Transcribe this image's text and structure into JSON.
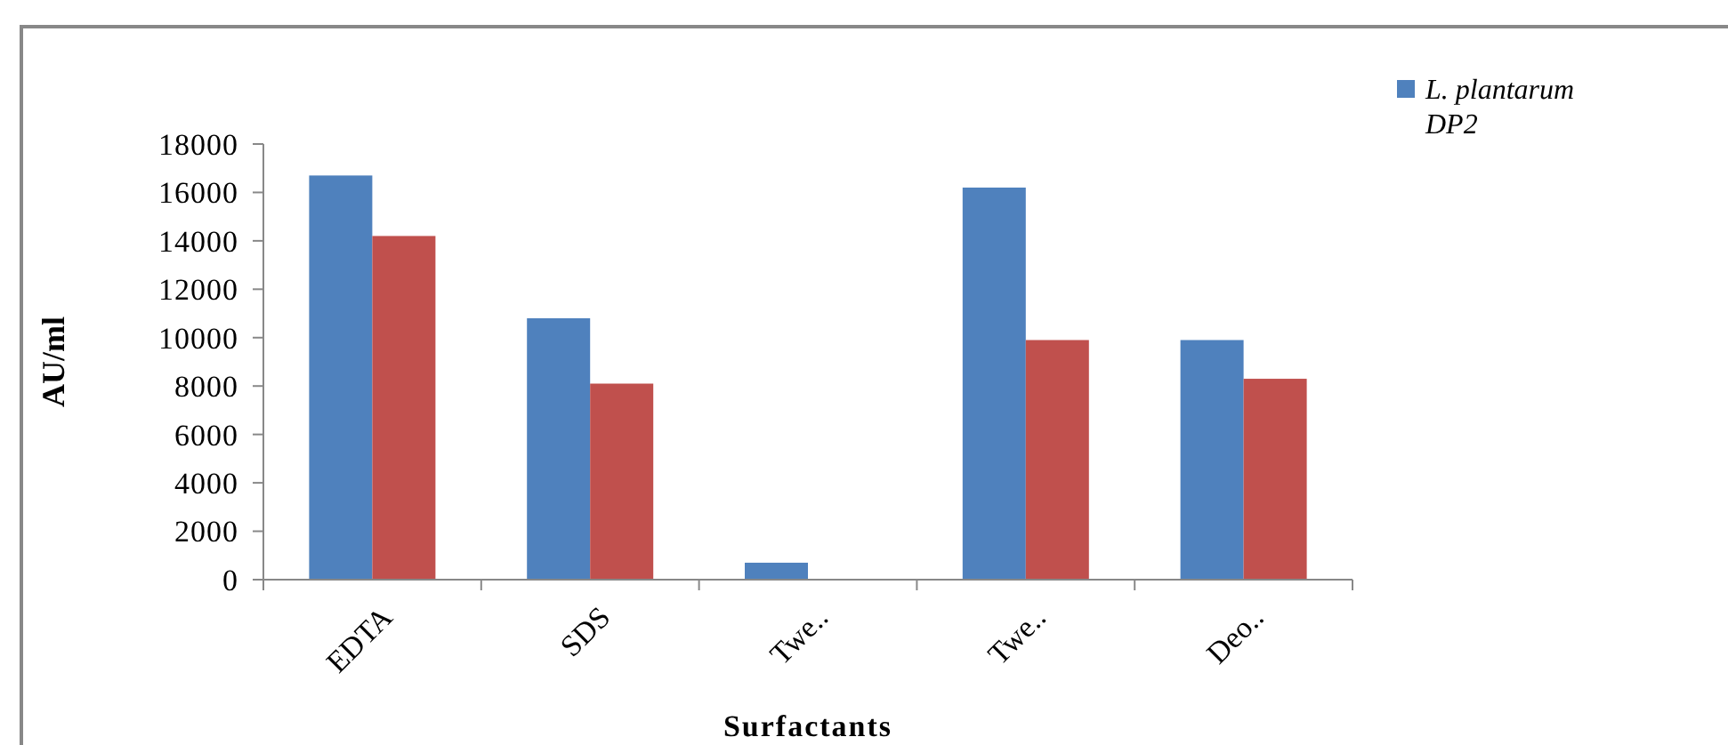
{
  "chart_data": {
    "type": "bar",
    "xlabel": "Surfactants",
    "ylabel": "AU/ml",
    "categories": [
      "EDTA",
      "SDS",
      "Twe..",
      "Twe..",
      "Deo.."
    ],
    "series": [
      {
        "name": "L. plantarum DP2",
        "color": "#4f81bd",
        "values": [
          16700,
          10800,
          700,
          16200,
          9900
        ]
      },
      {
        "color": "#c0504d",
        "values": [
          14200,
          8100,
          null,
          9900,
          8300
        ]
      }
    ],
    "ylim": [
      0,
      18000
    ],
    "yticks": [
      0,
      2000,
      4000,
      6000,
      8000,
      10000,
      12000,
      14000,
      16000,
      18000
    ],
    "grid": false,
    "legend": "top right"
  }
}
